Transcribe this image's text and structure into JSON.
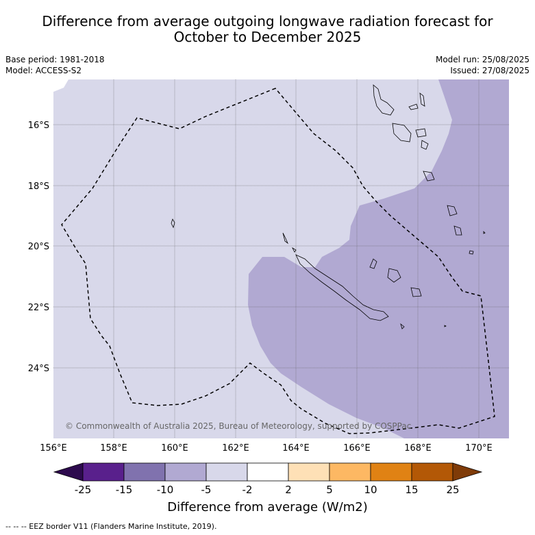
{
  "title_line1": "Difference from average outgoing longwave radiation forecast for",
  "title_line2": "October to December 2025",
  "base_period": "Base period: 1981-2018",
  "model": "Model: ACCESS-S2",
  "model_run": "Model run: 25/08/2025",
  "issued": "Issued: 27/08/2025",
  "copyright": "© Commonwealth of Australia 2025, Bureau of Meteorology, supported by COSPPac",
  "lat_labels": [
    "16°S",
    "18°S",
    "20°S",
    "22°S",
    "24°S"
  ],
  "lon_labels": [
    "156°E",
    "158°E",
    "160°E",
    "162°E",
    "164°E",
    "166°E",
    "168°E",
    "170°E"
  ],
  "colorbar": {
    "title": "Difference from average (W/m2)",
    "tick_labels": [
      "-25",
      "-15",
      "-10",
      "-5",
      "-2",
      "2",
      "5",
      "10",
      "15",
      "25"
    ],
    "colors": [
      "#2d0a4e",
      "#59208c",
      "#8072ae",
      "#b1a9d2",
      "#d8d8ea",
      "#ffffff",
      "#fee0b6",
      "#fdb863",
      "#e08214",
      "#b35806",
      "#7f3b08"
    ]
  },
  "footnote": "--  --  -- EEZ border V11 (Flanders Marine Institute, 2019).",
  "map_colors": {
    "light_category": "#d8d8ea",
    "medium_category": "#b1a9d2"
  }
}
